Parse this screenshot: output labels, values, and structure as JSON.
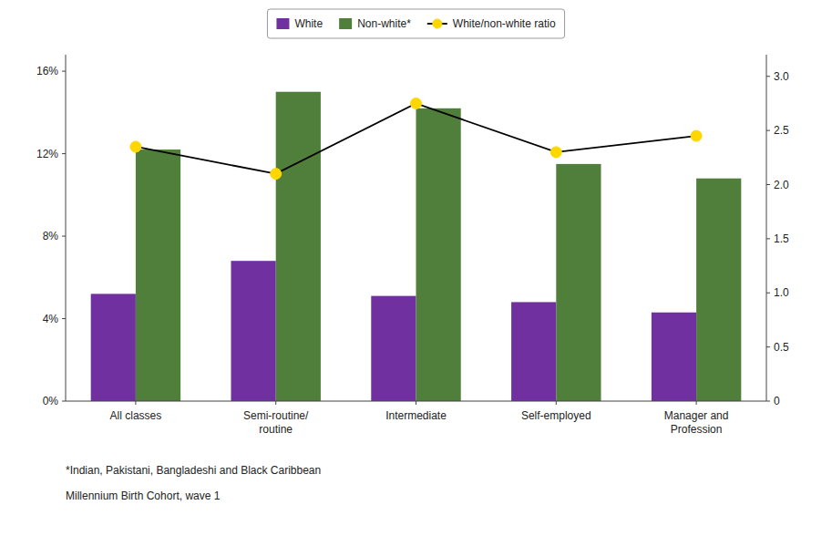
{
  "chart_data": {
    "type": "bar",
    "categories": [
      "All classes",
      "Semi-routine/\nroutine",
      "Intermediate",
      "Self-employed",
      "Manager and\nProfession"
    ],
    "series": [
      {
        "name": "White",
        "color": "#7030A0",
        "values": [
          5.2,
          6.8,
          5.1,
          4.8,
          4.3
        ]
      },
      {
        "name": "Non-white*",
        "color": "#4F7F3A",
        "values": [
          12.2,
          15.0,
          14.2,
          11.5,
          10.8
        ]
      },
      {
        "name": "White/non-white ratio",
        "type": "line",
        "axis": "y2",
        "color": "#FFD700",
        "marker": "circle",
        "values": [
          2.35,
          2.1,
          2.75,
          2.3,
          2.45
        ]
      }
    ],
    "ylim": [
      0,
      16.8
    ],
    "yticks": [
      {
        "value": 0,
        "label": "0%"
      },
      {
        "value": 4,
        "label": "4%"
      },
      {
        "value": 8,
        "label": "8%"
      },
      {
        "value": 12,
        "label": "12%"
      },
      {
        "value": 16,
        "label": "16%"
      }
    ],
    "y2lim": [
      0,
      3.2
    ],
    "y2ticks": [
      0,
      0.5,
      {
        "value": 1,
        "label": "1.0"
      },
      1.5,
      {
        "value": 2,
        "label": "2.0"
      },
      2.5,
      {
        "value": 3,
        "label": "3.0"
      }
    ],
    "annotations": [
      "*Indian, Pakistani, Bangladeshi and Black Caribbean",
      "Millennium Birth Cohort, wave 1"
    ],
    "legend": "top",
    "grid": false
  }
}
